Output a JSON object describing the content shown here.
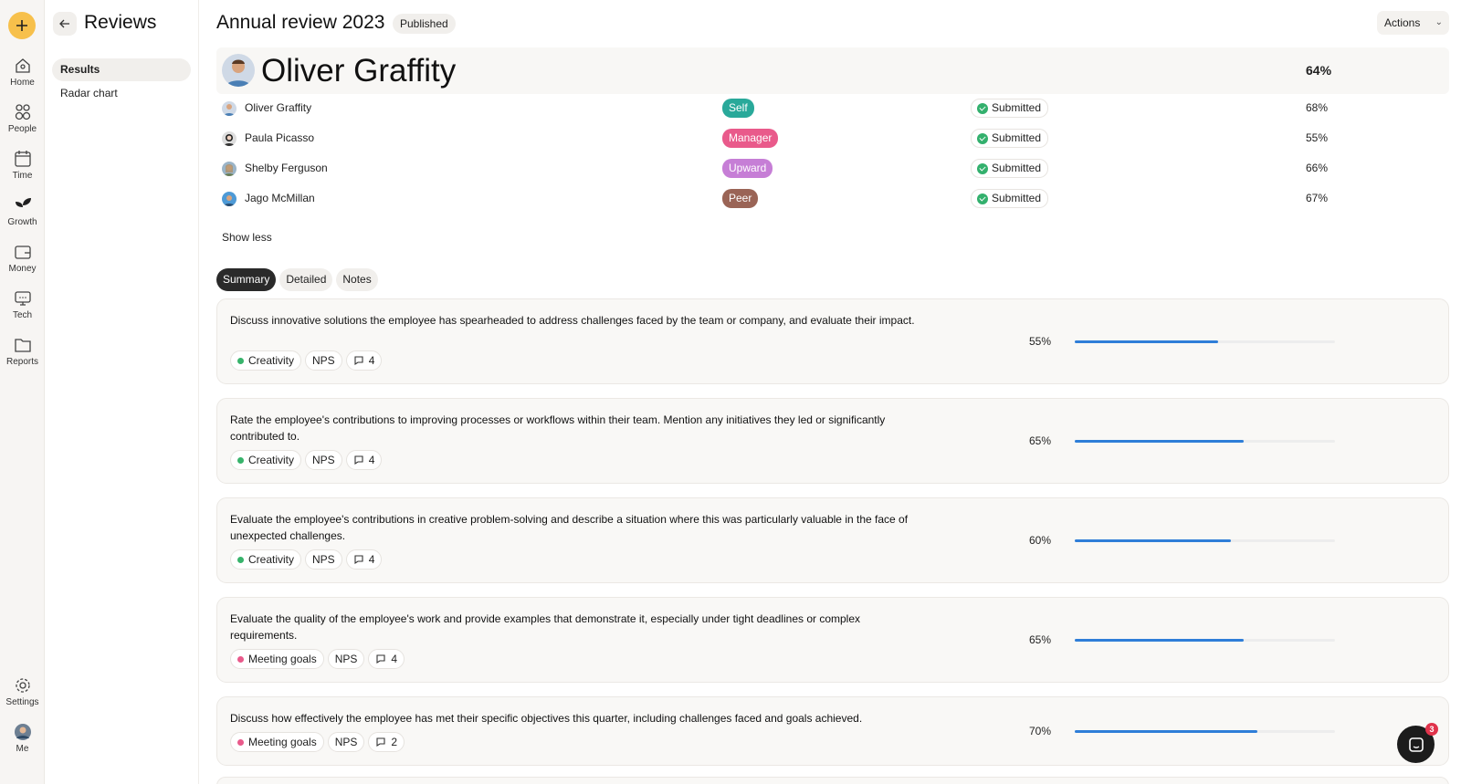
{
  "rail": {
    "items": [
      {
        "label": "Home",
        "icon": "home-icon"
      },
      {
        "label": "People",
        "icon": "people-icon"
      },
      {
        "label": "Time",
        "icon": "calendar-icon"
      },
      {
        "label": "Growth",
        "icon": "leaf-icon"
      },
      {
        "label": "Money",
        "icon": "wallet-icon"
      },
      {
        "label": "Tech",
        "icon": "laptop-icon"
      },
      {
        "label": "Reports",
        "icon": "folder-icon"
      },
      {
        "label": "Settings",
        "icon": "gear-icon"
      },
      {
        "label": "Me",
        "icon": "avatar"
      }
    ]
  },
  "subnav": {
    "title": "Reviews",
    "items": [
      "Results",
      "Radar chart"
    ]
  },
  "header": {
    "title": "Annual review 2023",
    "status": "Published",
    "actions_label": "Actions"
  },
  "person": {
    "name": "Oliver Graffity",
    "score": "64%"
  },
  "reviewers": [
    {
      "name": "Oliver Graffity",
      "type": "Self",
      "type_color": "#29a99a",
      "status": "Submitted",
      "score": "68%"
    },
    {
      "name": "Paula Picasso",
      "type": "Manager",
      "type_color": "#e95a8b",
      "status": "Submitted",
      "score": "55%"
    },
    {
      "name": "Shelby Ferguson",
      "type": "Upward",
      "type_color": "#c67ed6",
      "status": "Submitted",
      "score": "66%"
    },
    {
      "name": "Jago McMillan",
      "type": "Peer",
      "type_color": "#9a6456",
      "status": "Submitted",
      "score": "67%"
    }
  ],
  "show_less_label": "Show less",
  "tabs": [
    "Summary",
    "Detailed",
    "Notes"
  ],
  "questions": [
    {
      "text": "Discuss innovative solutions the employee has spearheaded to address challenges faced by the team or company, and evaluate their impact.",
      "category": "Creativity",
      "category_color": "#37b36b",
      "metric": "NPS",
      "comments": "4",
      "score_label": "55%",
      "score": 0.55
    },
    {
      "text": "Rate the employee's contributions to improving processes or workflows within their team. Mention any initiatives they led or significantly contributed to.",
      "category": "Creativity",
      "category_color": "#37b36b",
      "metric": "NPS",
      "comments": "4",
      "score_label": "65%",
      "score": 0.65
    },
    {
      "text": "Evaluate the employee's contributions in creative problem-solving and describe a situation where this was particularly valuable in the face of unexpected challenges.",
      "category": "Creativity",
      "category_color": "#37b36b",
      "metric": "NPS",
      "comments": "4",
      "score_label": "60%",
      "score": 0.6
    },
    {
      "text": "Evaluate the quality of the employee's work and provide examples that demonstrate it, especially under tight deadlines or complex requirements.",
      "category": "Meeting goals",
      "category_color": "#e95a8b",
      "metric": "NPS",
      "comments": "4",
      "score_label": "65%",
      "score": 0.65
    },
    {
      "text": "Discuss how effectively the employee has met their specific objectives this quarter, including challenges faced and goals achieved.",
      "category": "Meeting goals",
      "category_color": "#e95a8b",
      "metric": "NPS",
      "comments": "2",
      "score_label": "70%",
      "score": 0.7
    }
  ],
  "chat": {
    "badge": "3"
  }
}
